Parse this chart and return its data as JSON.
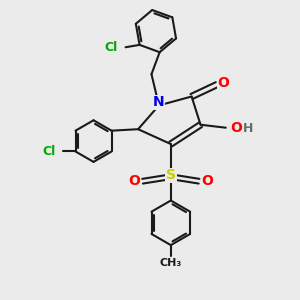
{
  "background_color": "#ebebeb",
  "bond_color": "#1a1a1a",
  "bond_width": 1.5,
  "atom_colors": {
    "N": "#0000ee",
    "O": "#ff0000",
    "S": "#cccc00",
    "Cl": "#00aa00",
    "H": "#607070",
    "C": "#1a1a1a"
  },
  "font_size": 9,
  "fig_width": 3.0,
  "fig_height": 3.0,
  "dpi": 100
}
